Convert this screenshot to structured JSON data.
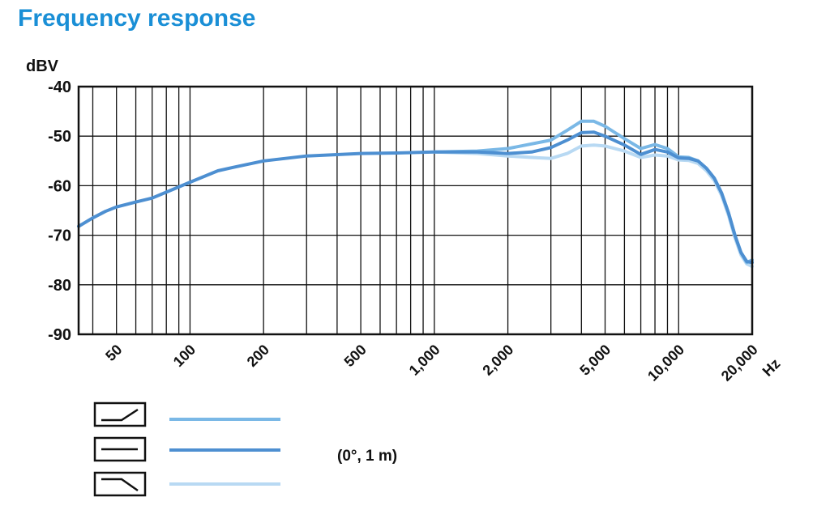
{
  "title": "Frequency response",
  "chart_data": {
    "type": "line",
    "title": "Frequency response",
    "ylabel": "dBV",
    "xunit": "Hz",
    "xscale": "log",
    "xlim": [
      35,
      20000
    ],
    "ylim": [
      -90,
      -40
    ],
    "yticks": [
      "-40",
      "-50",
      "-60",
      "-70",
      "-80",
      "-90"
    ],
    "xticks": [
      "50",
      "100",
      "200",
      "500",
      "1,000",
      "2,000",
      "5,000",
      "10,000",
      "20,000"
    ],
    "grid": true,
    "legend_note": "(0°, 1 m)",
    "series": [
      {
        "color": "#7ab8e6",
        "legend_icon": "low-cut-switch-icon",
        "points": [
          [
            1000,
            -53.2
          ],
          [
            1500,
            -53.0
          ],
          [
            2000,
            -52.5
          ],
          [
            3000,
            -50.8
          ],
          [
            3500,
            -48.8
          ],
          [
            4000,
            -47.0
          ],
          [
            4500,
            -47.0
          ],
          [
            5000,
            -48.0
          ],
          [
            6000,
            -50.5
          ],
          [
            7000,
            -52.5
          ],
          [
            8000,
            -51.7
          ],
          [
            9000,
            -52.5
          ],
          [
            10000,
            -54.2
          ],
          [
            11000,
            -54.3
          ],
          [
            12000,
            -55.0
          ],
          [
            13000,
            -56.5
          ],
          [
            14000,
            -58.5
          ],
          [
            15000,
            -61.5
          ],
          [
            16000,
            -65.5
          ],
          [
            17000,
            -70.0
          ],
          [
            18000,
            -73.5
          ],
          [
            19000,
            -75.5
          ],
          [
            20000,
            -75.0
          ]
        ]
      },
      {
        "color": "#4d8fd1",
        "legend_icon": "flat-switch-icon",
        "points": [
          [
            35,
            -68.2
          ],
          [
            40,
            -66.5
          ],
          [
            45,
            -65.2
          ],
          [
            50,
            -64.3
          ],
          [
            60,
            -63.3
          ],
          [
            70,
            -62.5
          ],
          [
            80,
            -61.3
          ],
          [
            100,
            -59.3
          ],
          [
            130,
            -57.0
          ],
          [
            150,
            -56.3
          ],
          [
            200,
            -55.0
          ],
          [
            300,
            -54.0
          ],
          [
            500,
            -53.5
          ],
          [
            700,
            -53.4
          ],
          [
            1000,
            -53.2
          ],
          [
            1500,
            -53.2
          ],
          [
            2000,
            -53.5
          ],
          [
            2500,
            -53.2
          ],
          [
            3000,
            -52.3
          ],
          [
            3500,
            -50.8
          ],
          [
            4000,
            -49.3
          ],
          [
            4500,
            -49.2
          ],
          [
            5000,
            -50.0
          ],
          [
            6000,
            -51.8
          ],
          [
            7000,
            -53.7
          ],
          [
            8000,
            -52.7
          ],
          [
            9000,
            -53.2
          ],
          [
            10000,
            -54.4
          ],
          [
            11000,
            -54.5
          ],
          [
            12000,
            -55.0
          ],
          [
            13000,
            -56.5
          ],
          [
            14000,
            -58.5
          ],
          [
            15000,
            -61.5
          ],
          [
            16000,
            -65.5
          ],
          [
            17000,
            -70.0
          ],
          [
            18000,
            -73.5
          ],
          [
            19000,
            -75.3
          ],
          [
            20000,
            -75.5
          ]
        ]
      },
      {
        "color": "#b8d9f3",
        "legend_icon": "high-cut-switch-icon",
        "points": [
          [
            1000,
            -53.2
          ],
          [
            1500,
            -53.5
          ],
          [
            2000,
            -54.0
          ],
          [
            2500,
            -54.3
          ],
          [
            3000,
            -54.5
          ],
          [
            3500,
            -53.5
          ],
          [
            4000,
            -52.0
          ],
          [
            4500,
            -51.8
          ],
          [
            5000,
            -52.0
          ],
          [
            6000,
            -53.0
          ],
          [
            7000,
            -54.3
          ],
          [
            8000,
            -53.8
          ],
          [
            9000,
            -54.0
          ],
          [
            10000,
            -54.8
          ],
          [
            11000,
            -54.9
          ],
          [
            12000,
            -55.5
          ],
          [
            13000,
            -57.0
          ],
          [
            14000,
            -59.0
          ],
          [
            15000,
            -62.0
          ],
          [
            16000,
            -66.0
          ],
          [
            17000,
            -70.5
          ],
          [
            18000,
            -74.0
          ],
          [
            19000,
            -75.8
          ],
          [
            20000,
            -76.3
          ]
        ]
      }
    ]
  }
}
